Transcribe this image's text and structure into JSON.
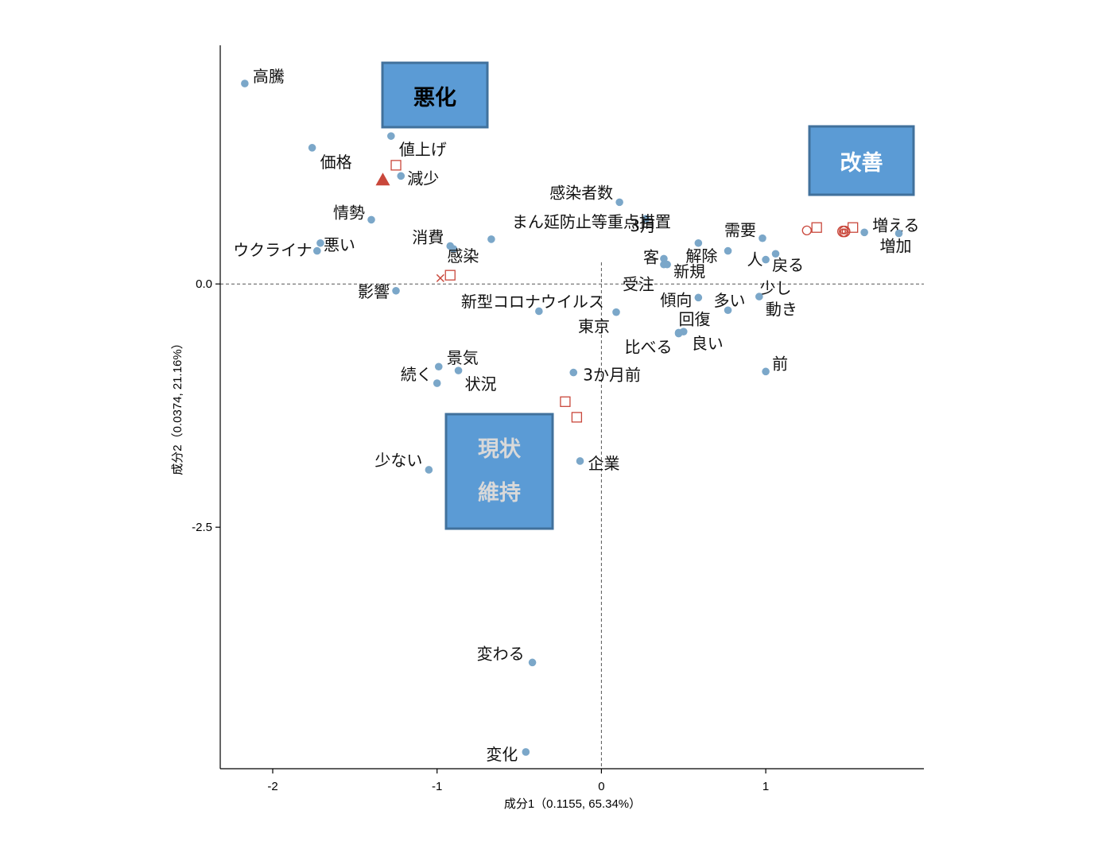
{
  "chart_data": {
    "type": "scatter",
    "xlabel": "成分1（0.1155, 65.34%）",
    "ylabel": "成分2（0.0374, 21.16%）",
    "xlim": [
      -2.3,
      1.95
    ],
    "ylim": [
      -4.95,
      2.45
    ],
    "xticks": [
      -2,
      -1,
      0,
      1
    ],
    "xtick_labels": [
      "-2",
      "-1",
      "0",
      "1"
    ],
    "yticks": [
      0.0,
      -2.5
    ],
    "ytick_labels": [
      "0.0",
      "-2.5"
    ],
    "reference_lines": {
      "x": 0,
      "y": 0,
      "style": "dashed"
    },
    "point_color": "#7ba7c9",
    "supplementary_color": "#c9473b",
    "words": [
      {
        "label": "高騰",
        "x": -2.17,
        "y": 2.06
      },
      {
        "label": "価格",
        "x": -1.76,
        "y": 1.4
      },
      {
        "label": "値上げ",
        "x": -1.28,
        "y": 1.52
      },
      {
        "label": "減少",
        "x": -1.22,
        "y": 1.11
      },
      {
        "label": "情勢",
        "x": -1.4,
        "y": 0.66
      },
      {
        "label": "悪い",
        "x": -1.71,
        "y": 0.42
      },
      {
        "label": "ウクライナ",
        "x": -1.73,
        "y": 0.34
      },
      {
        "label": "影響",
        "x": -1.25,
        "y": -0.07
      },
      {
        "label": "消費",
        "x": -0.92,
        "y": 0.39
      },
      {
        "label": "感染",
        "x": -0.9,
        "y": 0.36
      },
      {
        "label": "感染者数",
        "x": 0.11,
        "y": 0.84
      },
      {
        "label": "3月",
        "x": 0.27,
        "y": 0.67
      },
      {
        "label": "まん延防止等重点措置",
        "x": -0.67,
        "y": 0.46
      },
      {
        "label": "需要",
        "x": 0.98,
        "y": 0.47
      },
      {
        "label": "解除",
        "x": 0.59,
        "y": 0.42
      },
      {
        "label": "客",
        "x": 0.38,
        "y": 0.26
      },
      {
        "label": "受注",
        "x": 0.38,
        "y": 0.2
      },
      {
        "label": "新規",
        "x": 0.4,
        "y": 0.2
      },
      {
        "label": "人",
        "x": 0.77,
        "y": 0.34
      },
      {
        "label": "戻る",
        "x": 1.0,
        "y": 0.25
      },
      {
        "label": "少し",
        "x": 1.06,
        "y": 0.31
      },
      {
        "label": "増える",
        "x": 1.6,
        "y": 0.53
      },
      {
        "label": "増加",
        "x": 1.81,
        "y": 0.52
      },
      {
        "label": "新型コロナウイルス",
        "x": -0.38,
        "y": -0.28
      },
      {
        "label": "東京",
        "x": 0.09,
        "y": -0.29
      },
      {
        "label": "傾向",
        "x": 0.59,
        "y": -0.14
      },
      {
        "label": "多い",
        "x": 0.77,
        "y": -0.27
      },
      {
        "label": "回復",
        "x": 0.47,
        "y": -0.5
      },
      {
        "label": "動き",
        "x": 0.96,
        "y": -0.13
      },
      {
        "label": "比べる",
        "x": 0.47,
        "y": -0.51
      },
      {
        "label": "良い",
        "x": 0.5,
        "y": -0.49
      },
      {
        "label": "前",
        "x": 1.0,
        "y": -0.9
      },
      {
        "label": "3か月前",
        "x": -0.17,
        "y": -0.91
      },
      {
        "label": "景気",
        "x": -0.99,
        "y": -0.85
      },
      {
        "label": "続く",
        "x": -1.0,
        "y": -1.02
      },
      {
        "label": "状況",
        "x": -0.87,
        "y": -0.89
      },
      {
        "label": "少ない",
        "x": -1.05,
        "y": -1.91
      },
      {
        "label": "企業",
        "x": -0.13,
        "y": -1.82
      },
      {
        "label": "変わる",
        "x": -0.42,
        "y": -3.89
      },
      {
        "label": "変化",
        "x": -0.46,
        "y": -4.81
      }
    ],
    "supplementary_points": [
      {
        "marker": "triangle",
        "x": -1.33,
        "y": 1.07
      },
      {
        "marker": "square",
        "x": -1.25,
        "y": 1.22
      },
      {
        "marker": "cross",
        "x": -0.98,
        "y": 0.06
      },
      {
        "marker": "square",
        "x": -0.92,
        "y": 0.09
      },
      {
        "marker": "square",
        "x": -0.22,
        "y": -1.21
      },
      {
        "marker": "square",
        "x": -0.15,
        "y": -1.37
      },
      {
        "marker": "circle",
        "x": 1.25,
        "y": 0.55
      },
      {
        "marker": "square",
        "x": 1.31,
        "y": 0.58
      },
      {
        "marker": "double-circle",
        "x": 1.47,
        "y": 0.54
      },
      {
        "marker": "double-circle",
        "x": 1.48,
        "y": 0.54
      },
      {
        "marker": "square",
        "x": 1.53,
        "y": 0.58
      }
    ],
    "quadrant_labels": [
      {
        "lines": [
          "悪化"
        ],
        "text_color": "#000000"
      },
      {
        "lines": [
          "改善"
        ],
        "text_color": "#ffffff"
      },
      {
        "lines": [
          "現状",
          "維持"
        ],
        "text_color": "#d9d9d9"
      }
    ],
    "box_fill": "#5b9bd5",
    "box_border": "#41719c"
  }
}
